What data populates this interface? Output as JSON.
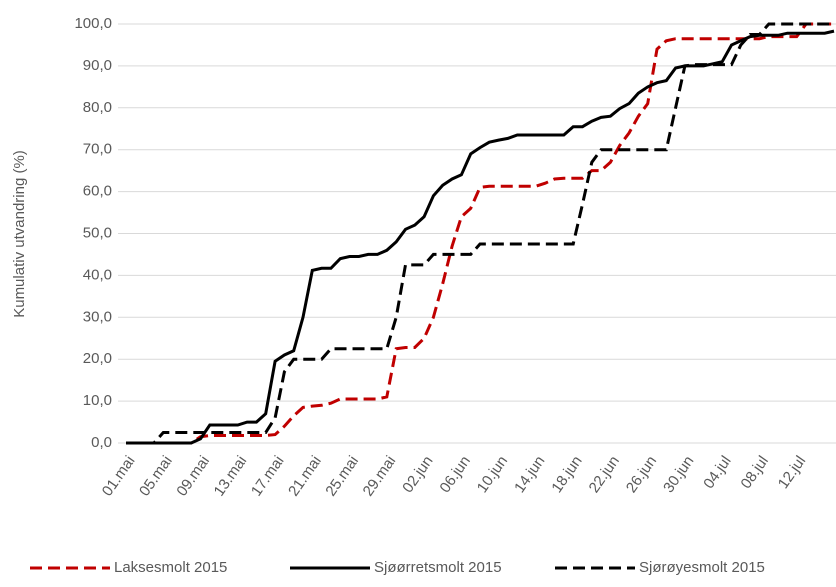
{
  "chart_data": {
    "type": "line",
    "y_label": "Kumulativ utvandring (%)",
    "categories": [
      "01.mai",
      null,
      null,
      null,
      "05.mai",
      null,
      null,
      null,
      "09.mai",
      null,
      null,
      null,
      "13.mai",
      null,
      null,
      null,
      "17.mai",
      null,
      null,
      null,
      "21.mai",
      null,
      null,
      null,
      "25.mai",
      null,
      null,
      null,
      "29.mai",
      null,
      null,
      null,
      "02.jun",
      null,
      null,
      null,
      "06.jun",
      null,
      null,
      null,
      "10.jun",
      null,
      null,
      null,
      "14.jun",
      null,
      null,
      null,
      "18.jun",
      null,
      null,
      null,
      "22.jun",
      null,
      null,
      null,
      "26.jun",
      null,
      null,
      null,
      "30.jun",
      null,
      null,
      null,
      "04.jul",
      null,
      null,
      null,
      "08.jul",
      null,
      null,
      null,
      "12.jul",
      null,
      null,
      null,
      null
    ],
    "series": [
      {
        "name": "Laksesmolt 2015",
        "color": "#c00000",
        "dash": "dashed",
        "values": [
          0,
          0,
          0,
          0,
          0,
          0,
          0,
          0,
          1.5,
          1.8,
          1.8,
          1.8,
          1.8,
          1.8,
          1.8,
          1.8,
          2,
          4,
          6.5,
          8.5,
          8.8,
          9,
          9.5,
          10.5,
          10.5,
          10.5,
          10.5,
          10.5,
          11,
          22.5,
          22.8,
          22.8,
          25,
          30,
          38,
          47,
          54,
          56,
          61,
          61.3,
          61.3,
          61.3,
          61.3,
          61.3,
          61.3,
          62,
          63,
          63.2,
          63.2,
          63.2,
          65,
          65,
          67,
          71,
          74,
          78,
          81,
          94,
          96,
          96.5,
          96.5,
          96.5,
          96.5,
          96.5,
          96.5,
          96.5,
          96.5,
          96.5,
          96.5,
          97,
          97,
          97,
          97,
          100,
          100,
          100,
          100
        ]
      },
      {
        "name": "Sjøørretsmolt 2015",
        "color": "#000000",
        "dash": "solid",
        "values": [
          0,
          0,
          0,
          0,
          0,
          0,
          0,
          0,
          1,
          4.3,
          4.3,
          4.3,
          4.3,
          5,
          5,
          7,
          19.5,
          21,
          22,
          30,
          41.2,
          41.7,
          41.7,
          44,
          44.5,
          44.5,
          45,
          45,
          46,
          48,
          51,
          52,
          54,
          59,
          61.5,
          63,
          64,
          69,
          70.5,
          71.8,
          72.3,
          72.7,
          73.5,
          73.5,
          73.5,
          73.5,
          73.5,
          73.5,
          75.5,
          75.5,
          76.8,
          77.7,
          78,
          79.8,
          81,
          83.5,
          85,
          86,
          86.5,
          89.5,
          90,
          90,
          90,
          90.5,
          91,
          95,
          96,
          97,
          97.3,
          97.3,
          97.3,
          97.8,
          97.8,
          97.8,
          97.8,
          97.8,
          98.3
        ]
      },
      {
        "name": "Sjørøyesmolt 2015",
        "color": "#000000",
        "dash": "dashed",
        "values": [
          0,
          0,
          0,
          0,
          2.5,
          2.5,
          2.5,
          2.5,
          2.5,
          2.5,
          2.5,
          2.5,
          2.5,
          2.5,
          2.5,
          2.5,
          6,
          17,
          20,
          20,
          20,
          20,
          22.5,
          22.5,
          22.5,
          22.5,
          22.5,
          22.5,
          22.5,
          30,
          42.5,
          42.5,
          42.5,
          45,
          45,
          45,
          45,
          45,
          47.5,
          47.5,
          47.5,
          47.5,
          47.5,
          47.5,
          47.5,
          47.5,
          47.5,
          47.5,
          47.5,
          57,
          67,
          70,
          70,
          70,
          70,
          70,
          70,
          70,
          70,
          80,
          90,
          90.3,
          90.3,
          90.3,
          90.3,
          90.3,
          95,
          97.5,
          97.5,
          100,
          100,
          100,
          100,
          100,
          100,
          100,
          100
        ]
      }
    ],
    "ylim": [
      0,
      100
    ],
    "yticks": [
      {
        "value": 0,
        "label": "0,0"
      },
      {
        "value": 10,
        "label": "10,0"
      },
      {
        "value": 20,
        "label": "20,0"
      },
      {
        "value": 30,
        "label": "30,0"
      },
      {
        "value": 40,
        "label": "40,0"
      },
      {
        "value": 50,
        "label": "50,0"
      },
      {
        "value": 60,
        "label": "60,0"
      },
      {
        "value": 70,
        "label": "70,0"
      },
      {
        "value": 80,
        "label": "80,0"
      },
      {
        "value": 90,
        "label": "90,0"
      },
      {
        "value": 100,
        "label": "100,0"
      }
    ],
    "grid": true,
    "legend": "bottom"
  }
}
